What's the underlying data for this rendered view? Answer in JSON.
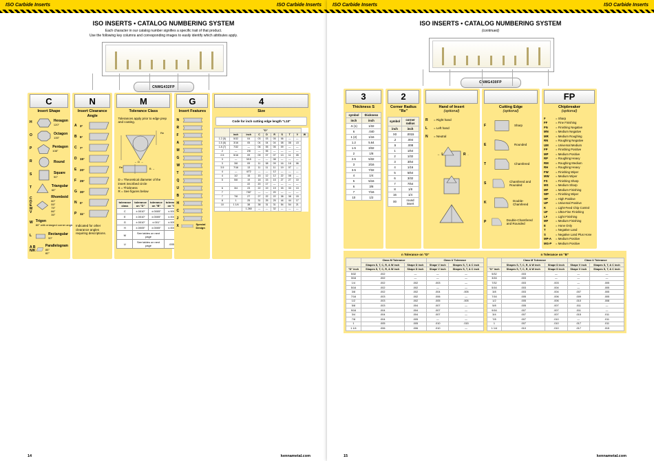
{
  "header": {
    "left": "ISO Carbide Inserts",
    "right": "ISO Carbide Inserts"
  },
  "title": "ISO INSERTS  •  CATALOG NUMBERING SYSTEM",
  "subtitle_left_l1": "Each character in our catalog number signifies a specific trait of that product.",
  "subtitle_left_l2": "Use the following key columns and corresponding images to easily identify which attributes apply.",
  "subtitle_right": "(continued)",
  "pill": "CNMG432FP",
  "pill_r": "CNMG430FP",
  "footer": {
    "site": "kennametal.com",
    "page_l": "14",
    "page_r": "15"
  },
  "cols": {
    "c": {
      "hdr": "C",
      "sub": "Insert Shape",
      "rows": [
        [
          "H",
          "Hexagon",
          "120°",
          "hex"
        ],
        [
          "O",
          "Octagon",
          "135°",
          "oct"
        ],
        [
          "P",
          "Pentagon",
          "108°",
          "pent"
        ],
        [
          "R",
          "Round",
          "",
          "rnd"
        ],
        [
          "S",
          "Square",
          "90°",
          "sq"
        ],
        [
          "T",
          "Triangular",
          "60°",
          "tri"
        ],
        [
          "C\nD\nE\nM\nV",
          "Rhomboid",
          "80°\n55°\n75°\n86°\n35°",
          "rhom"
        ],
        [
          "W",
          "Trigon",
          "80° with enlarged corner angles",
          "trig"
        ],
        [
          "L",
          "Rectangular",
          "90°",
          "rect"
        ],
        [
          "A B\nN/K",
          "Parallelogram",
          "85°\n82°",
          "para"
        ]
      ]
    },
    "n": {
      "hdr": "N",
      "sub": "Insert Clearance Angle",
      "rows": [
        [
          "A",
          "3°"
        ],
        [
          "B",
          "5°"
        ],
        [
          "C",
          "7°"
        ],
        [
          "D",
          "15°"
        ],
        [
          "E",
          "20°"
        ],
        [
          "F",
          "25°"
        ],
        [
          "G",
          "30°"
        ],
        [
          "N",
          "0°"
        ],
        [
          "P",
          "11°"
        ]
      ],
      "note": "Indicated for other clearance angles requiring descriptions."
    },
    "m": {
      "hdr": "M",
      "sub": "Tolerance Class",
      "note": "Tolerances apply prior to edge prep and coating.",
      "legend": [
        "D = Theoretical diameter of the insert inscribed circle",
        "S = Thickness",
        "R = See figures below"
      ],
      "table": {
        "head": [
          "tolerance class",
          "tolerance on \"D\"",
          "tolerance on \"B\"",
          "tolerance on \"S\""
        ],
        "rows": [
          [
            "C",
            "±.0010\"",
            "±.0005\"",
            "±.001\""
          ],
          [
            "E",
            "±.0010\"",
            "±.0005\"",
            "±.001\""
          ],
          [
            "G",
            "±.0010\"",
            "±.001\"",
            "±.005\""
          ],
          [
            "H",
            "±.0005\"",
            "±.0005\"",
            "±.001\""
          ],
          [
            "M",
            "See tables on next page",
            "",
            " "
          ],
          [
            "U",
            "See tables on next page",
            "",
            ".005\""
          ]
        ]
      }
    },
    "g": {
      "hdr": "G",
      "sub": "Insert Features",
      "rows": [
        "N",
        "R",
        "F",
        "A",
        "M",
        "G",
        "W",
        "T",
        "Q",
        "U",
        "B",
        "H",
        "C",
        "J",
        "X"
      ],
      "x_note": "Special Design"
    },
    "4": {
      "hdr": "4",
      "sub": "Size",
      "note": "Code for inch cutting edge length \"L10\"",
      "thead": [
        "inch",
        "inch",
        "C",
        "D",
        "R",
        "S",
        "T",
        "V",
        "W"
      ],
      "rows": [
        [
          "1.2 (5)",
          "5/32",
          "04",
          "03",
          "03",
          "05",
          "06",
          "—",
          "—"
        ],
        [
          "1.5 (6)",
          "3/16",
          "05",
          "04",
          "04",
          "04",
          "08",
          "08",
          "L5"
        ],
        [
          "1.8 (7)",
          "7/32",
          "—",
          "06",
          "05",
          "05",
          "09",
          "—",
          "—"
        ],
        [
          "2",
          "—",
          "2/8",
          "—",
          "06",
          "—",
          "—",
          "—",
          "—"
        ],
        [
          "2.5",
          "5/16",
          "09",
          "09",
          "07",
          "07",
          "13",
          "11",
          "05"
        ],
        [
          "3",
          "—",
          "3/15",
          "—",
          "—",
          "08",
          "—",
          "—",
          "—"
        ],
        [
          "3",
          "3/8",
          "09",
          "11",
          "08",
          "09",
          "16",
          "16",
          "06"
        ],
        [
          "3.5",
          "7/16",
          "13",
          "11",
          "11",
          "11",
          "19",
          "07",
          "—"
        ],
        [
          "4",
          "—",
          "4/72",
          "—",
          "—",
          "12",
          "—",
          "—",
          "—"
        ],
        [
          "4",
          "1/2",
          "15",
          "15",
          "12",
          "12",
          "22",
          "08",
          "—"
        ],
        [
          "5",
          "5/8",
          "19",
          "18",
          "15",
          "15",
          "27",
          "27",
          "10"
        ],
        [
          "",
          "",
          "22",
          "20",
          "17",
          "—",
          "—",
          "—",
          "—"
        ],
        [
          "6",
          "3/4",
          "23",
          "22",
          "19",
          "19",
          "33",
          "33",
          "13"
        ],
        [
          "7",
          "",
          "7/87",
          "—",
          "—",
          "20",
          "—",
          "—",
          "—"
        ],
        [
          "7",
          "7/8",
          "27",
          "27",
          "22",
          "22",
          "38",
          "38",
          "15"
        ],
        [
          "8",
          "1",
          "25",
          "31",
          "25",
          "25",
          "44",
          "44",
          "17"
        ],
        [
          "10",
          "1 1/4",
          "38",
          "38",
          "31",
          "31",
          "54",
          "54",
          "21"
        ],
        [
          "",
          "",
          "1.260",
          "—",
          "—",
          "32",
          "—",
          "—",
          "—"
        ]
      ],
      "over": "\"D\""
    },
    "3": {
      "hdr": "3",
      "sub": "Thickness S",
      "thead": [
        "symbol",
        "thickness"
      ],
      "unit": "inch",
      "rows": [
        [
          ".5 (1)",
          "1/32"
        ],
        [
          "6",
          ".040"
        ],
        [
          "1 (2)",
          "1/16"
        ],
        [
          "1.2",
          "5.64"
        ],
        [
          "1.5",
          "3/32"
        ],
        [
          "2",
          "1/8"
        ],
        [
          "2.5",
          "5/32"
        ],
        [
          "3",
          "3/16"
        ],
        [
          "3.5",
          "7/32"
        ],
        [
          "4",
          "1/4"
        ],
        [
          "5",
          "5/16"
        ],
        [
          "6",
          "3/8"
        ],
        [
          "7",
          "7/16"
        ],
        [
          "10",
          "1/2"
        ]
      ]
    },
    "2": {
      "hdr": "2",
      "sub": "Corner Radius \"Re\"",
      "thead": [
        "symbol",
        "corner radius"
      ],
      "unit": "inch",
      "rows": [
        [
          "X0",
          ".0015"
        ],
        [
          ".2",
          ".004"
        ],
        [
          ".5",
          ".008"
        ],
        [
          "1",
          "1/64"
        ],
        [
          "2",
          "1/32"
        ],
        [
          "3",
          "3/64"
        ],
        [
          "4",
          "1/16"
        ],
        [
          "5",
          "5/64"
        ],
        [
          "6",
          "3/32"
        ],
        [
          "7",
          "7/64"
        ],
        [
          "8",
          "1/8"
        ],
        [
          "16",
          "1/4"
        ],
        [
          "00",
          "round insert"
        ]
      ]
    },
    "hand": {
      "hdr": "",
      "sub": "Hand of Insert",
      "sub2": "(optional)",
      "rows": [
        [
          "R",
          "= Right hand"
        ],
        [
          "L",
          "= Left hand"
        ],
        [
          "N",
          "= Neutral"
        ]
      ]
    },
    "edge": {
      "hdr": "",
      "sub": "Cutting Edge",
      "sub2": "(optional)",
      "rows": [
        [
          "F",
          "Sharp"
        ],
        [
          "E",
          "Rounded"
        ],
        [
          "T",
          "Chamfered"
        ],
        [
          "S",
          "Chamfered and Rounded"
        ],
        [
          "K",
          "Double-Chamfered"
        ],
        [
          "P",
          "Double-Chamfered and Rounded"
        ]
      ]
    },
    "fp": {
      "hdr": "FP",
      "sub": "Chipbreaker",
      "sub2": "(optional)",
      "rows": [
        [
          "F",
          "= Sharp"
        ],
        [
          "FF",
          "= Fine Finishing"
        ],
        [
          "FN",
          "= Finishing Negative"
        ],
        [
          "MN",
          "= Medium Negative"
        ],
        [
          "MR",
          "= Medium Roughing"
        ],
        [
          "RN",
          "= Roughing Negative"
        ],
        [
          "UM",
          "= Universal Medium"
        ],
        [
          "FP",
          "= Finishing Positive"
        ],
        [
          "MP",
          "= Medium Positive"
        ],
        [
          "RP",
          "= Roughing Heavy"
        ],
        [
          "RM",
          "= Roughing Medium"
        ],
        [
          "RH",
          "= Roughing Heavy"
        ],
        [
          "FW",
          "= Finishing Wiper"
        ],
        [
          "MW",
          "= Medium Wiper"
        ],
        [
          "FS",
          "= Finishing Sharp"
        ],
        [
          "MS",
          "= Medium Sharp"
        ],
        [
          "MF",
          "= Medium Finishing"
        ],
        [
          "WP",
          "= Finishing Wiper"
        ],
        [
          "HP",
          "= High Positive"
        ],
        [
          "UP",
          "= Universal Positive"
        ],
        [
          "K",
          "= Light-Feed Chip Control"
        ],
        [
          "UF",
          "= Ultra-Fine Finishing"
        ],
        [
          "LF",
          "= Light Finishing"
        ],
        [
          "MF",
          "= Medium Finishing"
        ],
        [
          "E",
          "= Hone Only"
        ],
        [
          "T",
          "= Negative Land"
        ],
        [
          "S",
          "= Negative Land Plus Hone"
        ],
        [
          "MP-A",
          "= Medium Positive"
        ],
        [
          "MG-P",
          "= Medium Positive"
        ]
      ]
    }
  },
  "bigtable": {
    "over_d": "n  Tolerance on \"D\"",
    "over_b": "n  Tolerance on \"B\"",
    "group_m": "Class M Tolerance",
    "group_u": "Class U Tolerance",
    "head": [
      "\"D\" inch",
      "Shapes S, T, C, R, & W inch",
      "Shape D inch",
      "Shape V inch",
      "Shapes S, T, & C inch"
    ],
    "rows": [
      [
        "5/32",
        ".002",
        "—",
        "—",
        "—"
      ],
      [
        "3/16",
        ".002",
        "—",
        "—",
        "—"
      ],
      [
        "1/4",
        ".002",
        ".002",
        ".003",
        "—"
      ],
      [
        "5/16",
        ".002",
        ".002",
        "—",
        "—"
      ],
      [
        "3/8",
        ".002",
        ".002",
        ".004",
        ".005"
      ],
      [
        "7/16",
        ".003",
        ".002",
        ".006",
        "—"
      ],
      [
        "1/2",
        ".003",
        ".002",
        ".005",
        ".005"
      ],
      [
        "5/8",
        ".003",
        ".004",
        ".007",
        "—"
      ],
      [
        "9/16",
        ".004",
        ".004",
        ".007",
        "—"
      ],
      [
        "3/4",
        ".004",
        ".004",
        ".007",
        "—"
      ],
      [
        "7/8",
        ".004",
        ".005",
        "—",
        "—"
      ],
      [
        "1",
        ".005",
        ".005",
        ".010",
        ".015"
      ],
      [
        "1 1/4",
        ".006",
        ".006",
        ".010",
        "—"
      ]
    ],
    "rows_b": [
      [
        "5/32",
        ".003",
        "—",
        "—",
        "—"
      ],
      [
        "3/16",
        ".003",
        "—",
        "—",
        "—"
      ],
      [
        "7/32",
        ".003",
        ".003",
        "—",
        ".005"
      ],
      [
        "5/16",
        ".003",
        ".004",
        "—",
        ".005"
      ],
      [
        "3/8",
        ".003",
        ".004",
        ".007",
        ".005"
      ],
      [
        "7/16",
        ".005",
        ".006",
        ".009",
        ".005"
      ],
      [
        "1/2",
        ".005",
        ".006",
        ".010",
        ".008"
      ],
      [
        "5/8",
        ".005",
        ".007",
        ".011",
        "—"
      ],
      [
        "9/16",
        ".007",
        ".007",
        ".011",
        "—"
      ],
      [
        "3/4",
        ".007",
        ".007",
        ".015",
        ".011"
      ],
      [
        "7/8",
        ".007",
        ".010",
        "—",
        ".011"
      ],
      [
        "1",
        ".007",
        ".010",
        ".017",
        ".011"
      ],
      [
        "1 1/4",
        ".010",
        ".010",
        ".017",
        ".015"
      ]
    ]
  },
  "colors": {
    "yellow": "#fee789",
    "bar": "#ffd600",
    "grey": "#d4d4d4"
  }
}
